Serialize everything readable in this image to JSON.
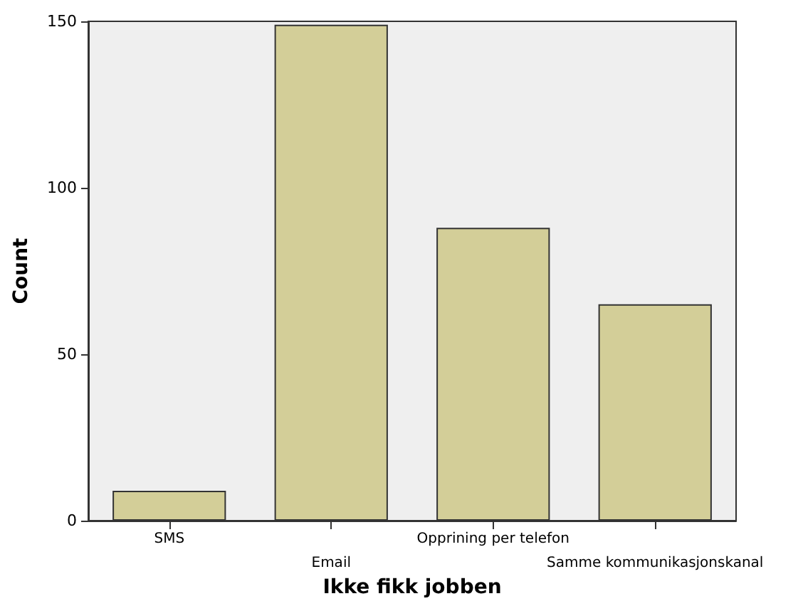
{
  "chart_data": {
    "type": "bar",
    "xlabel": "Ikke fikk jobben",
    "ylabel": "Count",
    "categories": [
      "SMS",
      "Email",
      "Opprining per telefon",
      "Samme kommunikasjonskanal"
    ],
    "values": [
      9,
      149,
      88,
      65
    ],
    "color": "#d3ce98",
    "ylim": [
      0,
      150
    ],
    "yticks": [
      0,
      50,
      100,
      150
    ],
    "grid": false
  }
}
